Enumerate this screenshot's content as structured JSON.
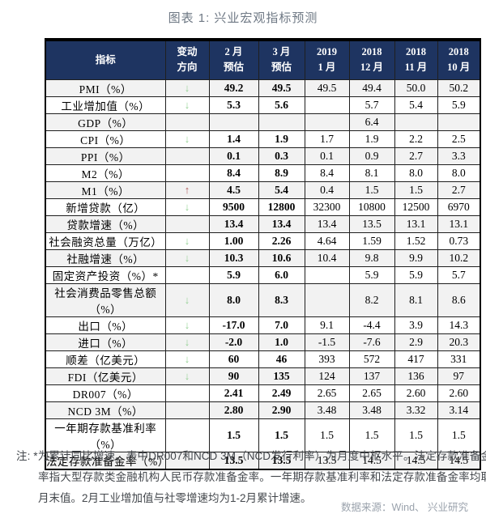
{
  "title": "图表 1: 兴业宏观指标预测",
  "icons": {
    "down": "↓",
    "up": "↑"
  },
  "colors": {
    "header_bg": "#1e3461",
    "header_text": "#ffffff",
    "title_text": "#6e7884",
    "down_arrow": "#96d296",
    "up_arrow": "#b3605f",
    "stripe": "#f2f2f2",
    "border": "#1f1f1f",
    "note_text": "#43474c",
    "source_text": "#9aa2ac"
  },
  "table": {
    "headers": [
      "指标",
      "变动\n方向",
      "2 月\n预估",
      "3 月\n预估",
      "2019\n1 月",
      "2018\n12 月",
      "2018\n11 月",
      "2018\n10 月"
    ],
    "rows": [
      {
        "indicator": "PMI（%）",
        "dir": "down",
        "values": [
          "49.2",
          "49.5",
          "49.5",
          "49.4",
          "50.0",
          "50.2"
        ]
      },
      {
        "indicator": "工业增加值（%）",
        "dir": "down",
        "values": [
          "5.3",
          "5.6",
          "",
          "5.7",
          "5.4",
          "5.9"
        ]
      },
      {
        "indicator": "GDP（%）",
        "dir": "",
        "values": [
          "",
          "",
          "",
          "6.4",
          "",
          ""
        ]
      },
      {
        "indicator": "CPI（%）",
        "dir": "down",
        "values": [
          "1.4",
          "1.9",
          "1.7",
          "1.9",
          "2.2",
          "2.5"
        ]
      },
      {
        "indicator": "PPI（%）",
        "dir": "",
        "values": [
          "0.1",
          "0.3",
          "0.1",
          "0.9",
          "2.7",
          "3.3"
        ]
      },
      {
        "indicator": "M2（%）",
        "dir": "",
        "values": [
          "8.4",
          "8.9",
          "8.4",
          "8.1",
          "8.0",
          "8.0"
        ]
      },
      {
        "indicator": "M1（%）",
        "dir": "up",
        "values": [
          "4.5",
          "5.4",
          "0.4",
          "1.5",
          "1.5",
          "2.7"
        ]
      },
      {
        "indicator": "新增贷款（亿）",
        "dir": "down",
        "values": [
          "9500",
          "12800",
          "32300",
          "10800",
          "12500",
          "6970"
        ]
      },
      {
        "indicator": "贷款增速（%）",
        "dir": "",
        "values": [
          "13.4",
          "13.4",
          "13.4",
          "13.5",
          "13.1",
          "13.1"
        ]
      },
      {
        "indicator": "社会融资总量（万亿）",
        "dir": "down",
        "values": [
          "1.00",
          "2.26",
          "4.64",
          "1.59",
          "1.52",
          "0.73"
        ]
      },
      {
        "indicator": "社融增速（%）",
        "dir": "down",
        "values": [
          "10.3",
          "10.6",
          "10.4",
          "9.8",
          "9.9",
          "10.2"
        ]
      },
      {
        "indicator": "固定资产投资（%）*",
        "dir": "",
        "values": [
          "5.9",
          "6.0",
          "",
          "5.9",
          "5.9",
          "5.7"
        ]
      },
      {
        "indicator": "社会消费品零售总额（%）",
        "dir": "down",
        "values": [
          "8.0",
          "8.3",
          "",
          "8.2",
          "8.1",
          "8.6"
        ]
      },
      {
        "indicator": "出口（%）",
        "dir": "down",
        "values": [
          "-17.0",
          "7.0",
          "9.1",
          "-4.4",
          "3.9",
          "14.3"
        ]
      },
      {
        "indicator": "进口（%）",
        "dir": "down",
        "values": [
          "-2.0",
          "1.0",
          "-1.5",
          "-7.6",
          "2.9",
          "20.3"
        ]
      },
      {
        "indicator": "顺差（亿美元）",
        "dir": "down",
        "values": [
          "60",
          "46",
          "393",
          "572",
          "417",
          "331"
        ]
      },
      {
        "indicator": "FDI（亿美元）",
        "dir": "down",
        "values": [
          "90",
          "135",
          "124",
          "137",
          "136",
          "97"
        ]
      },
      {
        "indicator": "DR007（%）",
        "dir": "",
        "values": [
          "2.41",
          "2.49",
          "2.65",
          "2.65",
          "2.60",
          "2.60"
        ]
      },
      {
        "indicator": "NCD 3M（%）",
        "dir": "",
        "values": [
          "2.80",
          "2.90",
          "3.48",
          "3.48",
          "3.32",
          "3.14"
        ]
      },
      {
        "indicator": "一年期存款基准利率（%）",
        "dir": "",
        "values": [
          "1.5",
          "1.5",
          "1.5",
          "1.5",
          "1.5",
          "1.5"
        ]
      },
      {
        "indicator": "法定存款准备金率（%）",
        "dir": "",
        "values": [
          "13.5",
          "13.5",
          "13.5",
          "14.5",
          "14.5",
          "14.5"
        ]
      }
    ]
  },
  "note": "注: *为累计同比增速。表中DR007和NCD 3M（NCD发行利率）为月度中枢水平。法定存款准备金率指大型存款类金融机构人民币存款准备金率。一年期存款基准利率和法定存款准备金率均取月末值。2月工业增加值与社零增速均为1-2月累计增速。",
  "source": "数据来源：Wind、 兴业研究"
}
